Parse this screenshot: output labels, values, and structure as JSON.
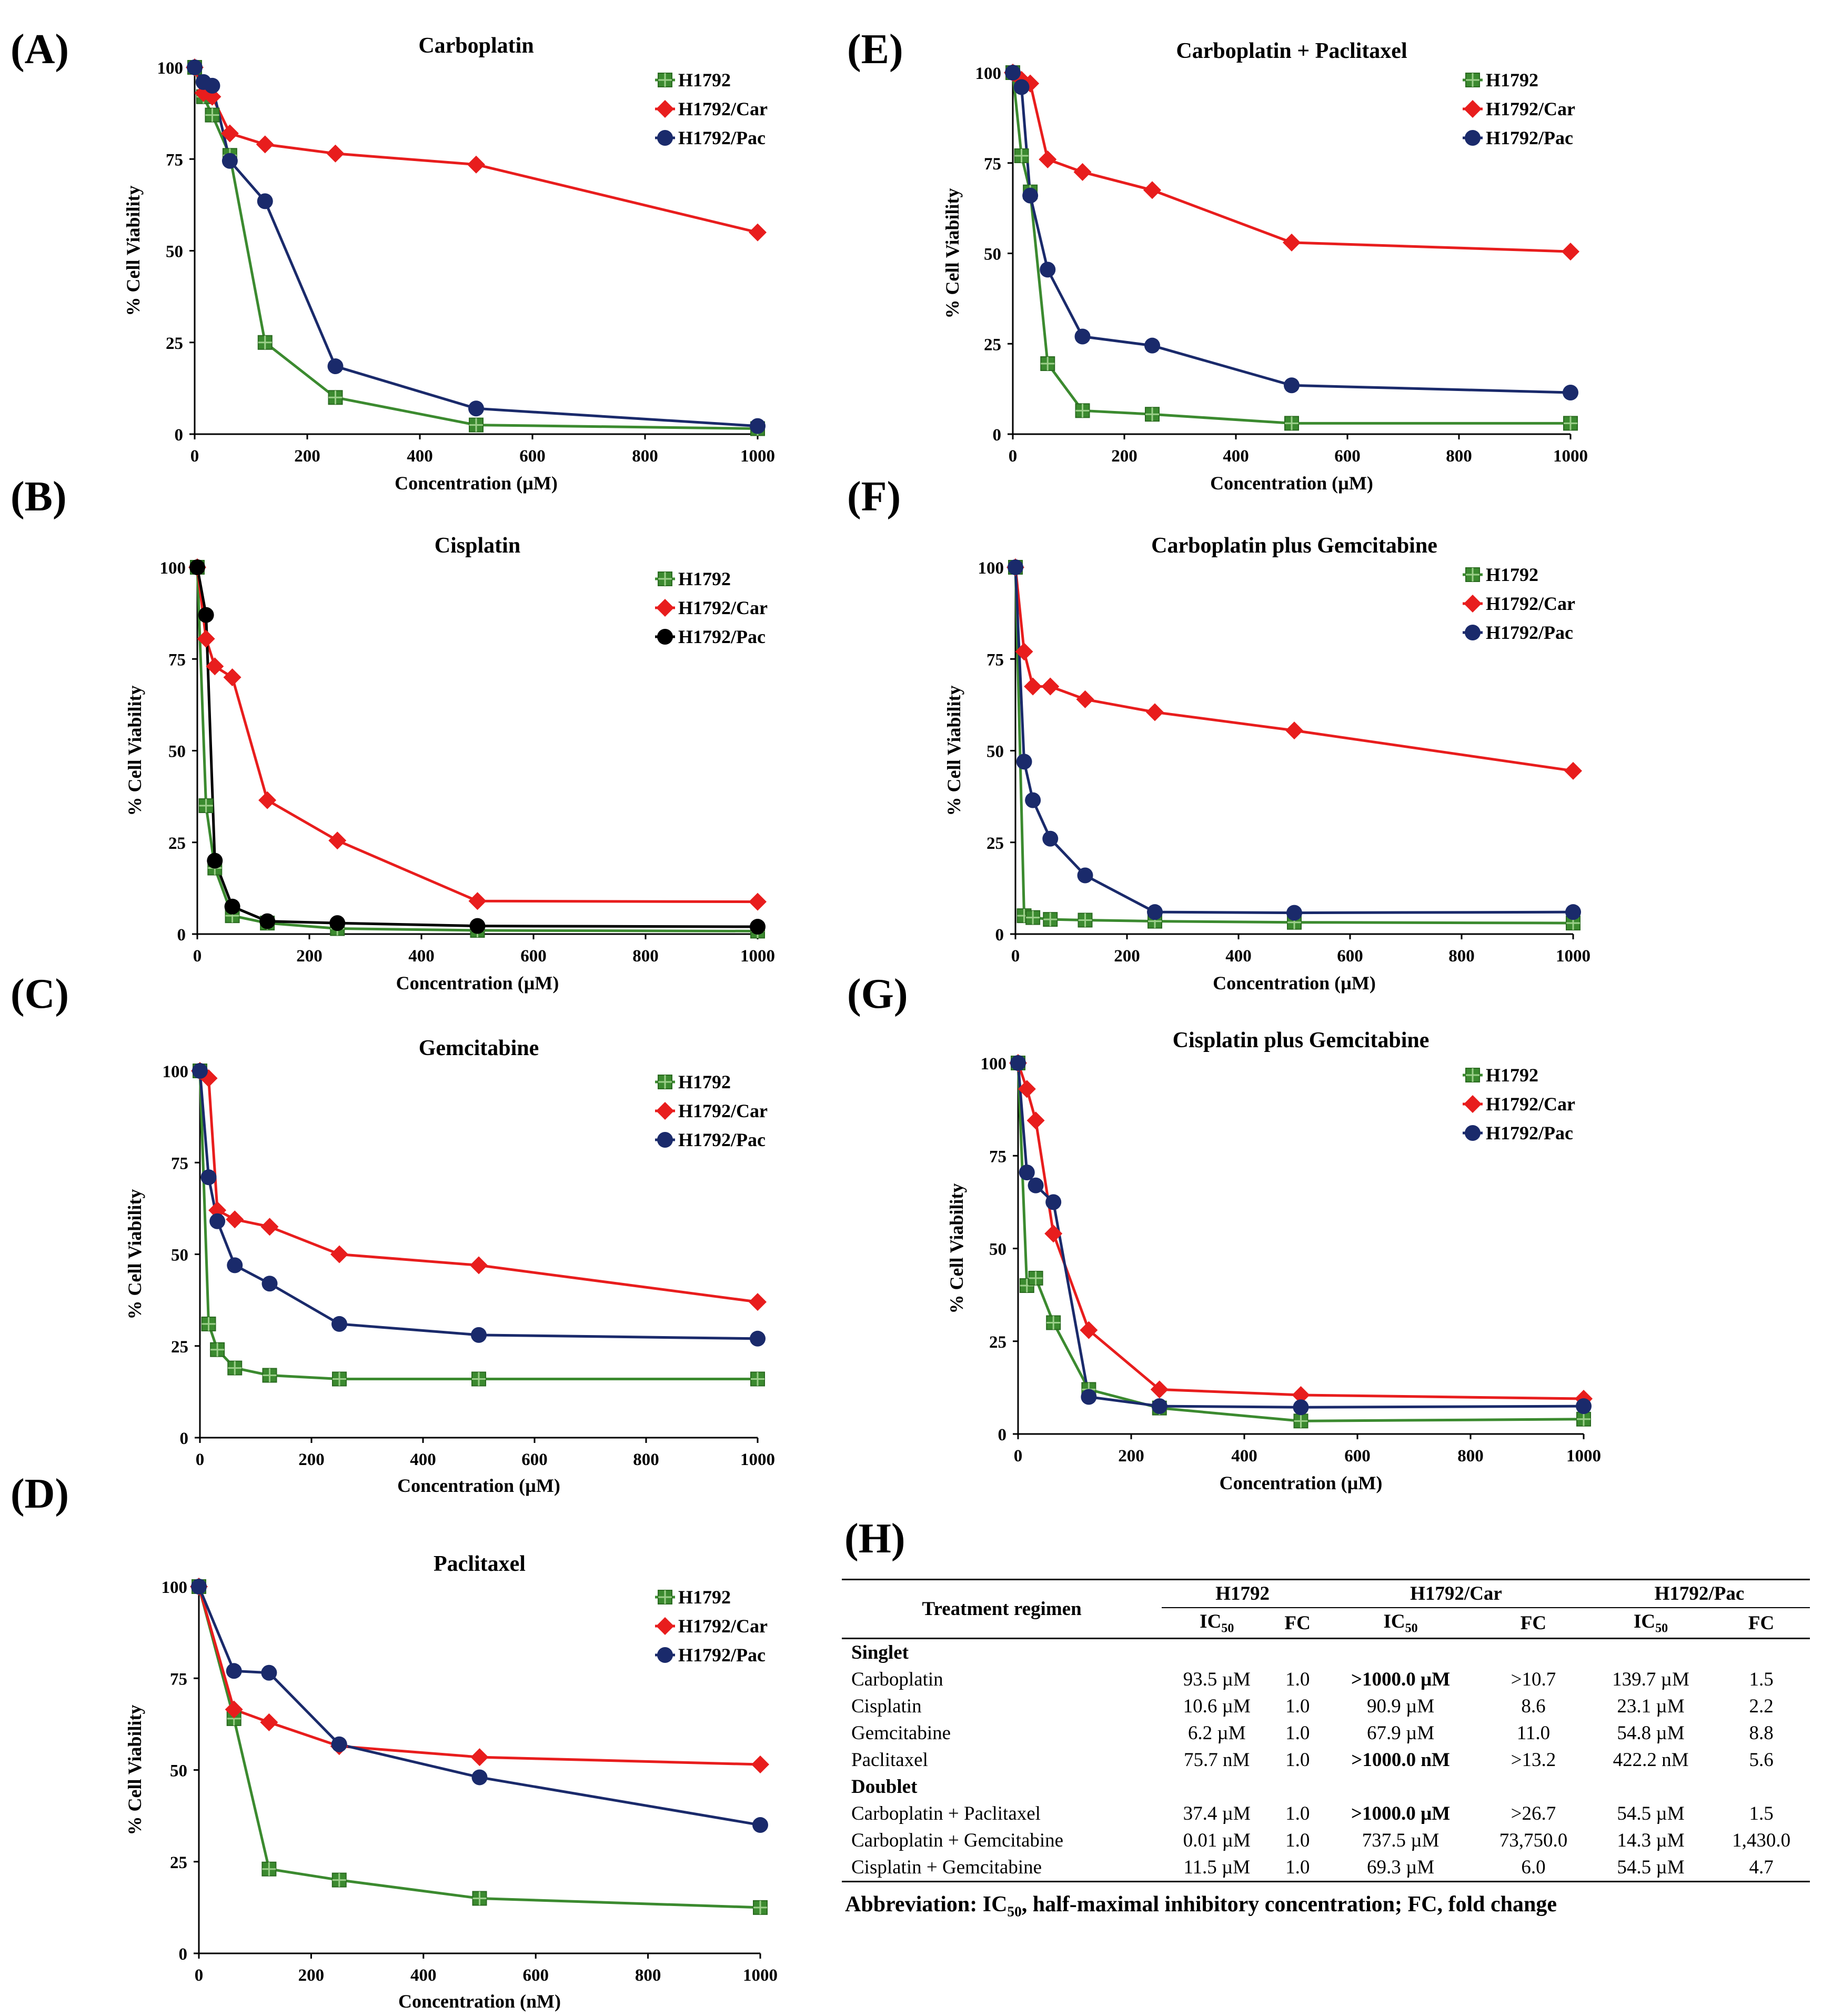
{
  "series_colors": {
    "H1792": "#3b8a2f",
    "H1792/Car": "#e81d1d",
    "H1792/Pac": "#1a2a6b",
    "black": "#000000"
  },
  "chart_data": [
    {
      "panel": "(A)",
      "type": "line",
      "title": "Carboplatin",
      "xlabel": "Concentration (µM)",
      "ylabel": "% Cell Viability",
      "xlim": [
        0,
        1000
      ],
      "ylim": [
        0,
        100
      ],
      "xticks": [
        "0",
        "200",
        "400",
        "600",
        "800",
        "1000"
      ],
      "yticks": [
        "0",
        "25",
        "50",
        "75",
        "100"
      ],
      "legend": [
        "H1792",
        "H1792/Car",
        "H1792/Pac"
      ],
      "series": [
        {
          "name": "H1792",
          "color": "#3b8a2f",
          "marker": "square",
          "x": [
            0,
            15.6,
            31.25,
            62.5,
            125,
            250,
            500,
            1000
          ],
          "y": [
            100,
            92,
            87,
            76,
            25,
            10,
            2.5,
            1.5
          ]
        },
        {
          "name": "H1792/Car",
          "color": "#e81d1d",
          "marker": "diamond",
          "x": [
            0,
            15.6,
            31.25,
            62.5,
            125,
            250,
            500,
            1000
          ],
          "y": [
            100,
            93,
            92,
            82,
            79,
            76.5,
            73.5,
            55
          ]
        },
        {
          "name": "H1792/Pac",
          "color": "#1a2a6b",
          "marker": "circle",
          "x": [
            0,
            15.6,
            31.25,
            62.5,
            125,
            250,
            500,
            1000
          ],
          "y": [
            100,
            96,
            95,
            74.5,
            63.5,
            18.5,
            7,
            2.2
          ]
        }
      ]
    },
    {
      "panel": "(B)",
      "type": "line",
      "title": "Cisplatin",
      "xlabel": "Concentration (µM)",
      "ylabel": "% Cell Viability",
      "xlim": [
        0,
        1000
      ],
      "ylim": [
        0,
        100
      ],
      "xticks": [
        "0",
        "200",
        "400",
        "600",
        "800",
        "1000"
      ],
      "yticks": [
        "0",
        "25",
        "50",
        "75",
        "100"
      ],
      "legend": [
        "H1792",
        "H1792/Car",
        "H1792/Pac"
      ],
      "series": [
        {
          "name": "H1792",
          "color": "#3b8a2f",
          "marker": "square",
          "x": [
            0,
            15.6,
            31.25,
            62.5,
            125,
            250,
            500,
            1000
          ],
          "y": [
            100,
            35,
            18,
            5,
            3,
            1.5,
            1,
            0.8
          ]
        },
        {
          "name": "H1792/Car",
          "color": "#e81d1d",
          "marker": "diamond",
          "x": [
            0,
            15.6,
            31.25,
            62.5,
            125,
            250,
            500,
            1000
          ],
          "y": [
            100,
            80.5,
            73,
            70,
            36.5,
            25.5,
            9,
            8.8
          ]
        },
        {
          "name": "H1792/Pac",
          "color": "#000000",
          "marker": "circle",
          "x": [
            0,
            15.6,
            31.25,
            62.5,
            125,
            250,
            500,
            1000
          ],
          "y": [
            100,
            87,
            20,
            7.5,
            3.5,
            3,
            2.2,
            2
          ]
        }
      ]
    },
    {
      "panel": "(C)",
      "type": "line",
      "title": "Gemcitabine",
      "xlabel": "Concentration (µM)",
      "ylabel": "% Cell Viability",
      "xlim": [
        0,
        1000
      ],
      "ylim": [
        0,
        100
      ],
      "xticks": [
        "0",
        "200",
        "400",
        "600",
        "800",
        "1000"
      ],
      "yticks": [
        "0",
        "25",
        "50",
        "75",
        "100"
      ],
      "legend": [
        "H1792",
        "H1792/Car",
        "H1792/Pac"
      ],
      "series": [
        {
          "name": "H1792",
          "color": "#3b8a2f",
          "marker": "square",
          "x": [
            0,
            15.6,
            31.25,
            62.5,
            125,
            250,
            500,
            1000
          ],
          "y": [
            100,
            31,
            24,
            19,
            17,
            16,
            16,
            16
          ]
        },
        {
          "name": "H1792/Car",
          "color": "#e81d1d",
          "marker": "diamond",
          "x": [
            0,
            15.6,
            31.25,
            62.5,
            125,
            250,
            500,
            1000
          ],
          "y": [
            100,
            98,
            62,
            59.5,
            57.5,
            50,
            47,
            37
          ]
        },
        {
          "name": "H1792/Pac",
          "color": "#1a2a6b",
          "marker": "circle",
          "x": [
            0,
            15.6,
            31.25,
            62.5,
            125,
            250,
            500,
            1000
          ],
          "y": [
            100,
            71,
            59,
            47,
            42,
            31,
            28,
            27
          ]
        }
      ]
    },
    {
      "panel": "(D)",
      "type": "line",
      "title": "Paclitaxel",
      "xlabel": "Concentration (nM)",
      "ylabel": "% Cell Viability",
      "xlim": [
        0,
        1000
      ],
      "ylim": [
        0,
        100
      ],
      "xticks": [
        "0",
        "200",
        "400",
        "600",
        "800",
        "1000"
      ],
      "yticks": [
        "0",
        "25",
        "50",
        "75",
        "100"
      ],
      "legend": [
        "H1792",
        "H1792/Car",
        "H1792/Pac"
      ],
      "series": [
        {
          "name": "H1792",
          "color": "#3b8a2f",
          "marker": "square",
          "x": [
            0,
            62.5,
            125,
            250,
            500,
            1000
          ],
          "y": [
            100,
            64,
            23,
            20,
            15,
            12.5
          ]
        },
        {
          "name": "H1792/Car",
          "color": "#e81d1d",
          "marker": "diamond",
          "x": [
            0,
            62.5,
            125,
            250,
            500,
            1000
          ],
          "y": [
            100,
            66.5,
            63,
            56.5,
            53.5,
            51.5
          ]
        },
        {
          "name": "H1792/Pac",
          "color": "#1a2a6b",
          "marker": "circle",
          "x": [
            0,
            62.5,
            125,
            250,
            500,
            1000
          ],
          "y": [
            100,
            77,
            76.5,
            57,
            48,
            35
          ]
        }
      ]
    },
    {
      "panel": "(E)",
      "type": "line",
      "title": "Carboplatin + Paclitaxel",
      "xlabel": "Concentration (µM)",
      "ylabel": "% Cell Viability",
      "xlim": [
        0,
        1000
      ],
      "ylim": [
        0,
        100
      ],
      "xticks": [
        "0",
        "200",
        "400",
        "600",
        "800",
        "1000"
      ],
      "yticks": [
        "0",
        "25",
        "50",
        "75",
        "100"
      ],
      "legend": [
        "H1792",
        "H1792/Car",
        "H1792/Pac"
      ],
      "series": [
        {
          "name": "H1792",
          "color": "#3b8a2f",
          "marker": "square",
          "x": [
            0,
            15.6,
            31.25,
            62.5,
            125,
            250,
            500,
            1000
          ],
          "y": [
            100,
            77,
            67,
            19.5,
            6.5,
            5.5,
            3,
            3
          ]
        },
        {
          "name": "H1792/Car",
          "color": "#e81d1d",
          "marker": "diamond",
          "x": [
            0,
            15.6,
            31.25,
            62.5,
            125,
            250,
            500,
            1000
          ],
          "y": [
            100,
            98,
            97,
            76,
            72.5,
            67.5,
            53,
            50.5
          ]
        },
        {
          "name": "H1792/Pac",
          "color": "#1a2a6b",
          "marker": "circle",
          "x": [
            0,
            15.6,
            31.25,
            62.5,
            125,
            250,
            500,
            1000
          ],
          "y": [
            100,
            96,
            66,
            45.5,
            27,
            24.5,
            13.5,
            11.5
          ]
        }
      ]
    },
    {
      "panel": "(F)",
      "type": "line",
      "title": "Carboplatin plus Gemcitabine",
      "xlabel": "Concentration (µM)",
      "ylabel": "% Cell Viability",
      "xlim": [
        0,
        1000
      ],
      "ylim": [
        0,
        100
      ],
      "xticks": [
        "0",
        "200",
        "400",
        "600",
        "800",
        "1000"
      ],
      "yticks": [
        "0",
        "25",
        "50",
        "75",
        "100"
      ],
      "legend": [
        "H1792",
        "H1792/Car",
        "H1792/Pac"
      ],
      "series": [
        {
          "name": "H1792",
          "color": "#3b8a2f",
          "marker": "square",
          "x": [
            0,
            15.6,
            31.25,
            62.5,
            125,
            250,
            500,
            1000
          ],
          "y": [
            100,
            5,
            4.5,
            4,
            3.8,
            3.5,
            3.2,
            3
          ]
        },
        {
          "name": "H1792/Car",
          "color": "#e81d1d",
          "marker": "diamond",
          "x": [
            0,
            15.6,
            31.25,
            62.5,
            125,
            250,
            500,
            1000
          ],
          "y": [
            100,
            77,
            67.5,
            67.5,
            64,
            60.5,
            55.5,
            44.5
          ]
        },
        {
          "name": "H1792/Pac",
          "color": "#1a2a6b",
          "marker": "circle",
          "x": [
            0,
            15.6,
            31.25,
            62.5,
            125,
            250,
            500,
            1000
          ],
          "y": [
            100,
            47,
            36.5,
            26,
            16,
            6,
            5.8,
            6
          ]
        }
      ]
    },
    {
      "panel": "(G)",
      "type": "line",
      "title": "Cisplatin plus Gemcitabine",
      "xlabel": "Concentration (µM)",
      "ylabel": "% Cell Viability",
      "xlim": [
        0,
        1000
      ],
      "ylim": [
        0,
        100
      ],
      "xticks": [
        "0",
        "200",
        "400",
        "600",
        "800",
        "1000"
      ],
      "yticks": [
        "0",
        "25",
        "50",
        "75",
        "100"
      ],
      "legend": [
        "H1792",
        "H1792/Car",
        "H1792/Pac"
      ],
      "series": [
        {
          "name": "H1792",
          "color": "#3b8a2f",
          "marker": "square",
          "x": [
            0,
            15.6,
            31.25,
            62.5,
            125,
            250,
            500,
            1000
          ],
          "y": [
            100,
            40,
            42,
            30,
            12,
            7,
            3.5,
            4
          ]
        },
        {
          "name": "H1792/Car",
          "color": "#e81d1d",
          "marker": "diamond",
          "x": [
            0,
            15.6,
            31.25,
            62.5,
            125,
            250,
            500,
            1000
          ],
          "y": [
            100,
            93,
            84.5,
            54,
            28,
            12,
            10.5,
            9.5
          ]
        },
        {
          "name": "H1792/Pac",
          "color": "#1a2a6b",
          "marker": "circle",
          "x": [
            0,
            15.6,
            31.25,
            62.5,
            125,
            250,
            500,
            1000
          ],
          "y": [
            100,
            70.5,
            67,
            62.5,
            10,
            7.5,
            7.2,
            7.5
          ]
        }
      ]
    }
  ],
  "table": {
    "panel": "(H)",
    "header": {
      "regimen": "Treatment regimen",
      "groups": [
        "H1792",
        "H1792/Car",
        "H1792/Pac"
      ],
      "ic50": "IC",
      "ic50_sub": "50",
      "fc": "FC"
    },
    "sections": [
      {
        "title": "Singlet",
        "rows": [
          {
            "regimen": "Carboplatin",
            "cells": [
              "93.5 µM",
              "1.0",
              ">1000.0 µM",
              ">10.7",
              "139.7 µM",
              "1.5"
            ],
            "bold": [
              2
            ]
          },
          {
            "regimen": "Cisplatin",
            "cells": [
              "10.6 µM",
              "1.0",
              "90.9 µM",
              "8.6",
              "23.1 µM",
              "2.2"
            ],
            "bold": []
          },
          {
            "regimen": "Gemcitabine",
            "cells": [
              "6.2 µM",
              "1.0",
              "67.9 µM",
              "11.0",
              "54.8 µM",
              "8.8"
            ],
            "bold": []
          },
          {
            "regimen": "Paclitaxel",
            "cells": [
              "75.7 nM",
              "1.0",
              ">1000.0 nM",
              ">13.2",
              "422.2 nM",
              "5.6"
            ],
            "bold": [
              2
            ]
          }
        ]
      },
      {
        "title": "Doublet",
        "rows": [
          {
            "regimen": "Carboplatin + Paclitaxel",
            "cells": [
              "37.4 µM",
              "1.0",
              ">1000.0 µM",
              ">26.7",
              "54.5 µM",
              "1.5"
            ],
            "bold": [
              2
            ]
          },
          {
            "regimen": "Carboplatin + Gemcitabine",
            "cells": [
              "0.01 µM",
              "1.0",
              "737.5 µM",
              "73,750.0",
              "14.3 µM",
              "1,430.0"
            ],
            "bold": []
          },
          {
            "regimen": "Cisplatin + Gemcitabine",
            "cells": [
              "11.5 µM",
              "1.0",
              "69.3 µM",
              "6.0",
              "54.5 µM",
              "4.7"
            ],
            "bold": []
          }
        ]
      }
    ],
    "abbreviation_lead": "Abbreviation: IC",
    "abbreviation_sub": "50",
    "abbreviation_rest": ", half-maximal inhibitory concentration; FC, fold change"
  }
}
